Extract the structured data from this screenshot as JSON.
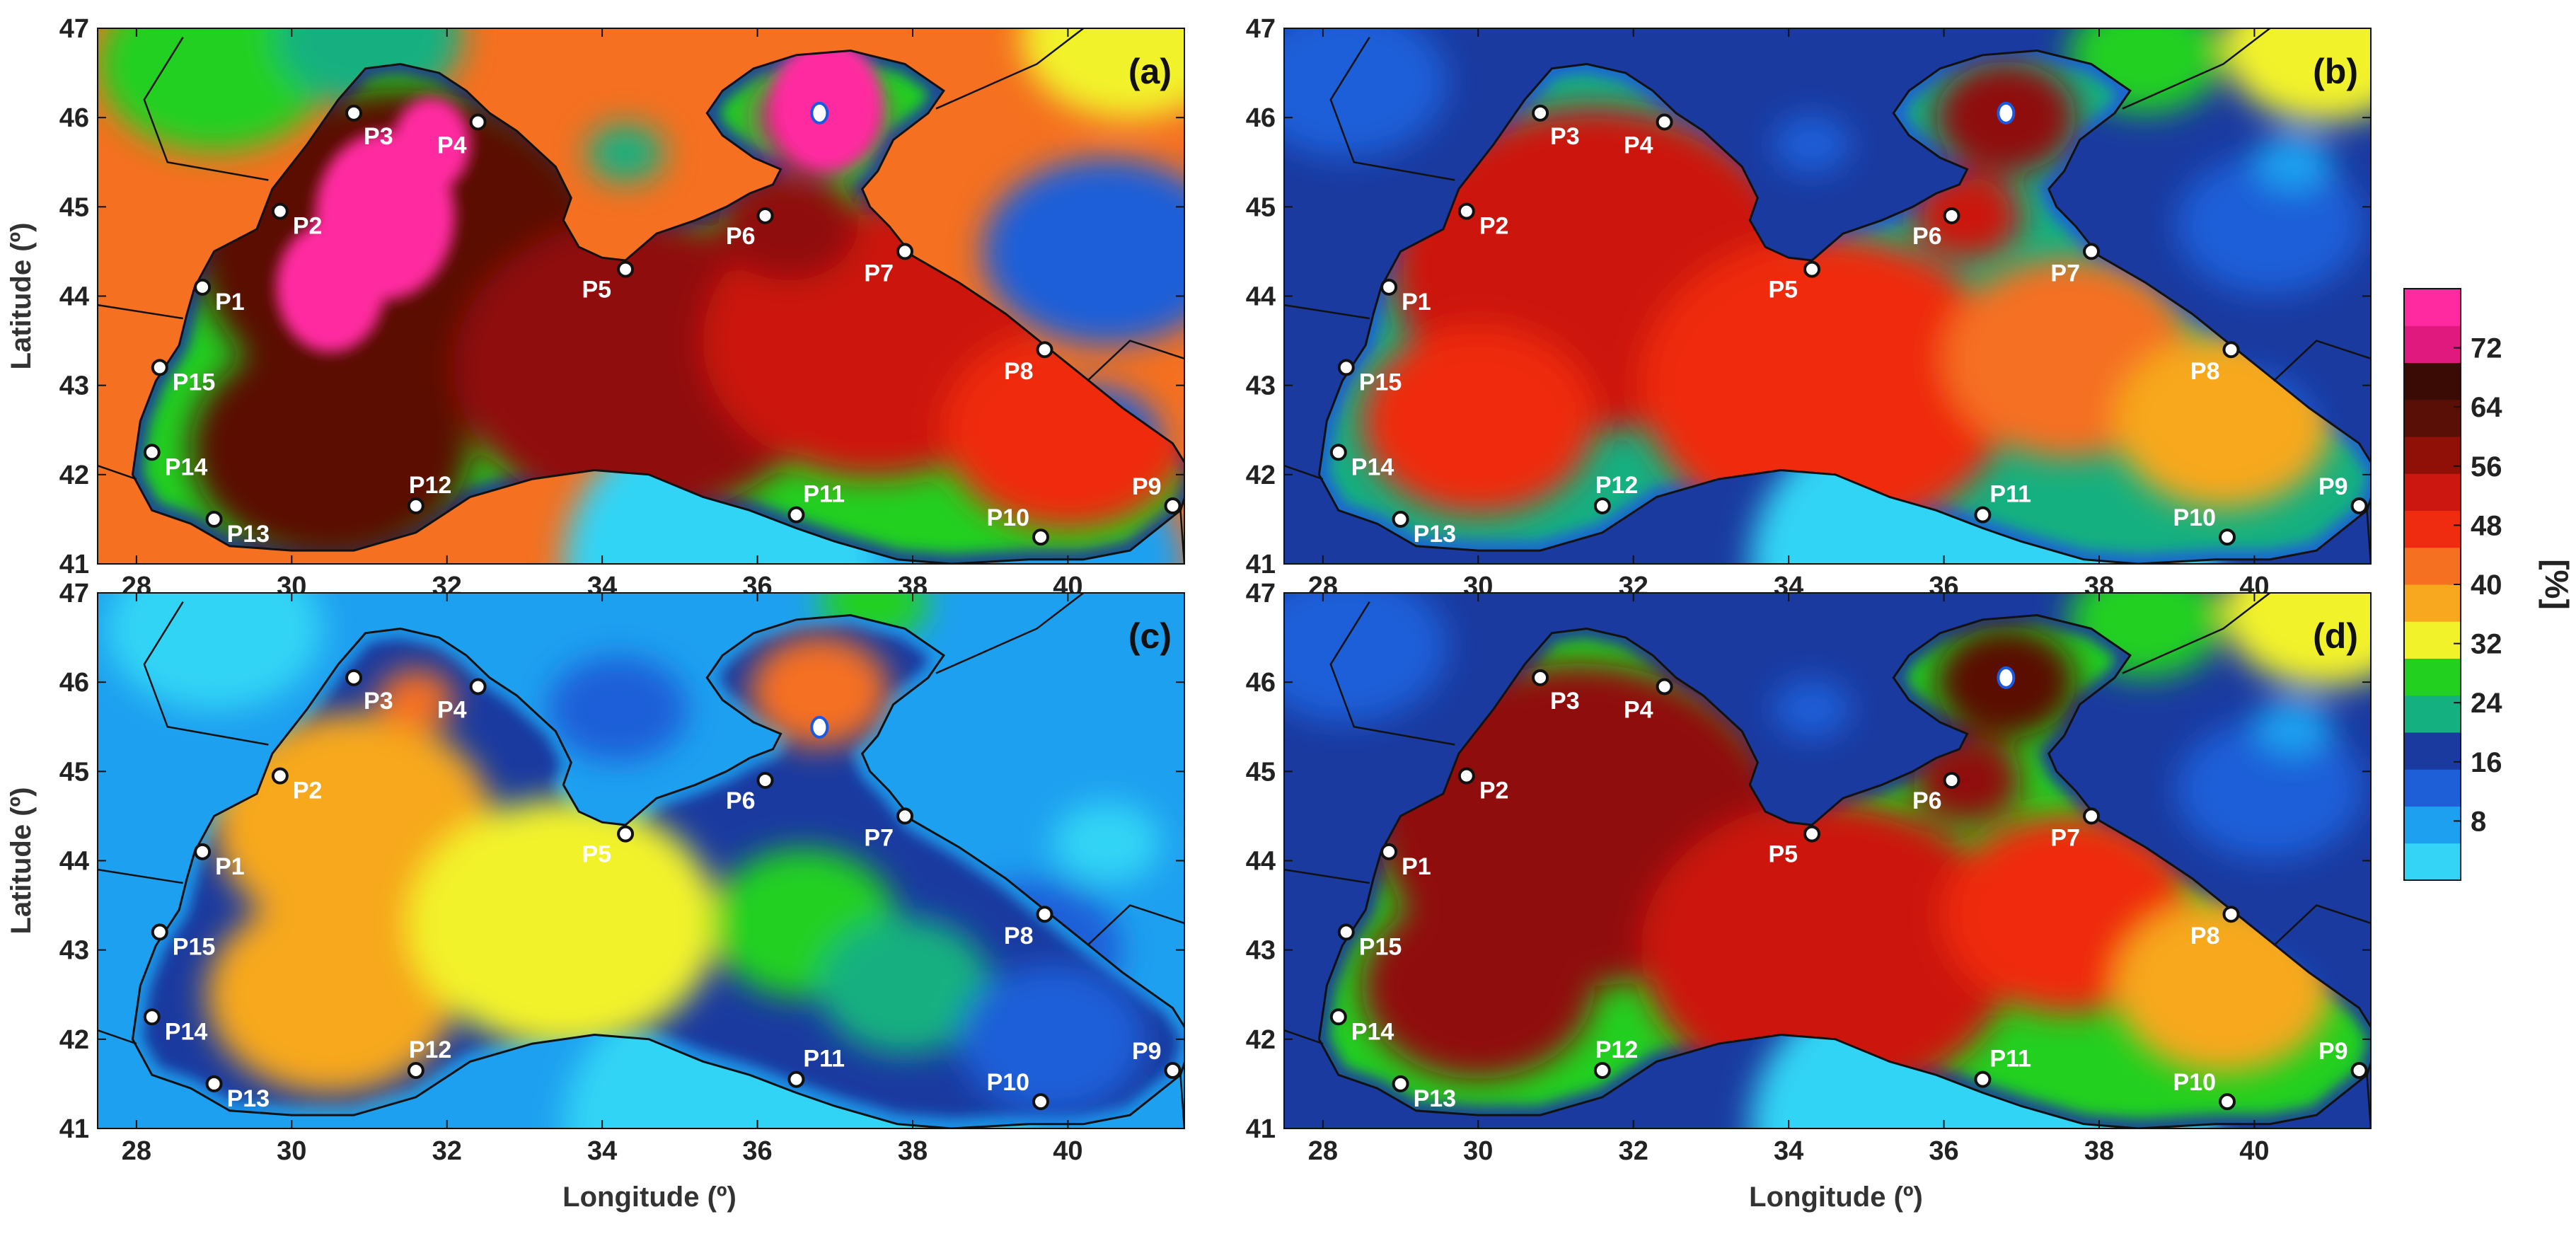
{
  "figure": {
    "panels": [
      {
        "id": "a",
        "tag": "(a)",
        "scheme": "a",
        "show_xlabel": false,
        "show_ylabel": true,
        "special_label_offsets": {}
      },
      {
        "id": "b",
        "tag": "(b)",
        "scheme": "b",
        "show_xlabel": false,
        "show_ylabel": false,
        "special_label_offsets": {}
      },
      {
        "id": "c",
        "tag": "(c)",
        "scheme": "c",
        "show_xlabel": true,
        "show_ylabel": true,
        "special_label_offsets": {
          "P5": [
            -20,
            26
          ],
          "P6": [
            -20,
            26
          ]
        }
      },
      {
        "id": "d",
        "tag": "(d)",
        "scheme": "d",
        "show_xlabel": true,
        "show_ylabel": false,
        "special_label_offsets": {}
      }
    ],
    "x_axis": {
      "label": "Longitude (º)",
      "ticks": [
        28,
        30,
        32,
        34,
        36,
        38,
        40
      ],
      "range": [
        27.5,
        41.5
      ]
    },
    "y_axis": {
      "label": "Latitude (º)",
      "ticks": [
        41,
        42,
        43,
        44,
        45,
        46,
        47
      ],
      "range": [
        41,
        47
      ]
    },
    "colorbar": {
      "unit": "[%]",
      "ticks": [
        8,
        16,
        24,
        32,
        40,
        48,
        56,
        64,
        72
      ],
      "min": 0,
      "max": 80,
      "colors": [
        "#33d4f5",
        "#1ea0f0",
        "#1e5fd8",
        "#1a3aa0",
        "#15b080",
        "#22d020",
        "#f2f22a",
        "#f7a81f",
        "#f57020",
        "#ef2b10",
        "#cc1610",
        "#901008",
        "#5a0f06",
        "#3a0b05",
        "#e0197e",
        "#ff2aa0"
      ]
    },
    "points": [
      {
        "name": "P1",
        "lon": 28.85,
        "lat": 44.1
      },
      {
        "name": "P2",
        "lon": 29.85,
        "lat": 44.95
      },
      {
        "name": "P3",
        "lon": 30.8,
        "lat": 46.05
      },
      {
        "name": "P4",
        "lon": 32.4,
        "lat": 45.95
      },
      {
        "name": "P5",
        "lon": 34.3,
        "lat": 44.3
      },
      {
        "name": "P6",
        "lon": 36.1,
        "lat": 44.9
      },
      {
        "name": "P7",
        "lon": 37.9,
        "lat": 44.5
      },
      {
        "name": "P8",
        "lon": 39.7,
        "lat": 43.4
      },
      {
        "name": "P9",
        "lon": 41.35,
        "lat": 41.65
      },
      {
        "name": "P10",
        "lon": 39.65,
        "lat": 41.3
      },
      {
        "name": "P11",
        "lon": 36.5,
        "lat": 41.55
      },
      {
        "name": "P12",
        "lon": 31.6,
        "lat": 41.65
      },
      {
        "name": "P13",
        "lon": 29.0,
        "lat": 41.5
      },
      {
        "name": "P14",
        "lon": 28.2,
        "lat": 42.25
      },
      {
        "name": "P15",
        "lon": 28.3,
        "lat": 43.2
      }
    ],
    "center_marker": {
      "lon": 36.8,
      "lat": 46.05
    }
  }
}
